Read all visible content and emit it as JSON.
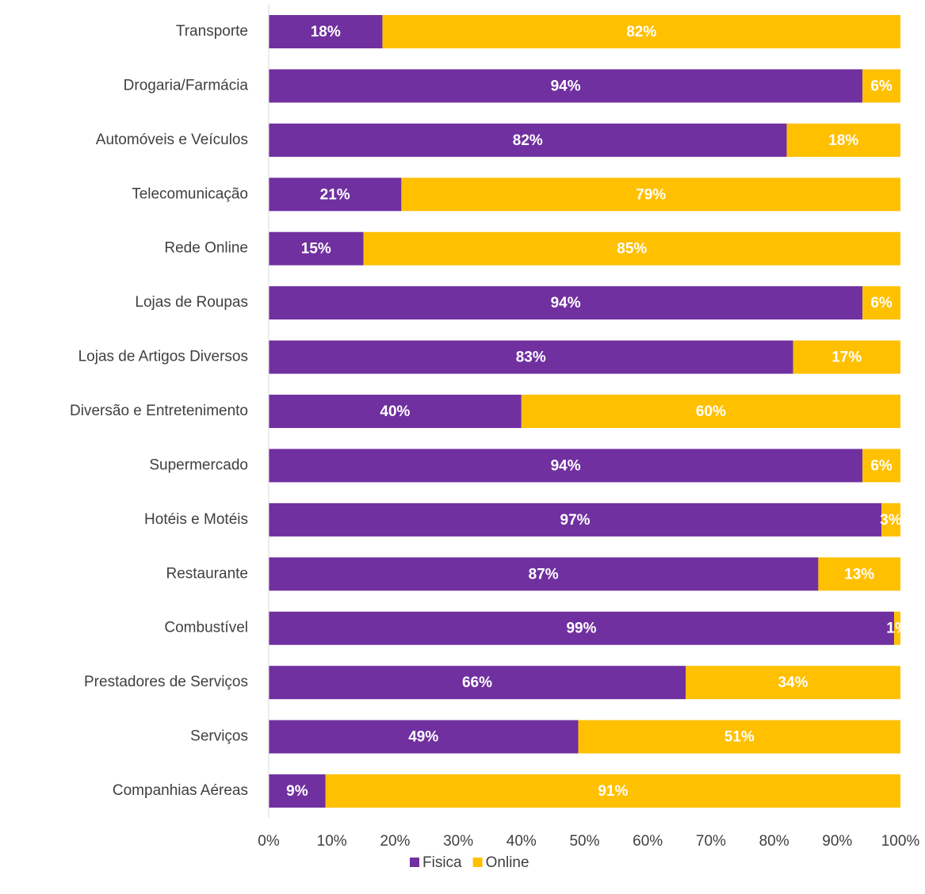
{
  "chart_data": {
    "type": "stacked_barh",
    "categories": [
      "Transporte",
      "Drogaria/Farmácia",
      "Automóveis e Veículos",
      "Telecomunicação",
      "Rede Online",
      "Lojas de Roupas",
      "Lojas de Artigos Diversos",
      "Diversão e Entretenimento",
      "Supermercado",
      "Hotéis e Motéis",
      "Restaurante",
      "Combustível",
      "Prestadores de Serviços",
      "Serviços",
      "Companhias Aéreas"
    ],
    "series": [
      {
        "name": "Fisica",
        "color": "#7030a0",
        "values": [
          18,
          94,
          82,
          21,
          15,
          94,
          83,
          40,
          94,
          97,
          87,
          99,
          66,
          49,
          9
        ],
        "value_labels": [
          "18%",
          "94%",
          "82%",
          "21%",
          "15%",
          "94%",
          "83%",
          "40%",
          "94%",
          "97%",
          "87%",
          "99%",
          "66%",
          "49%",
          "9%"
        ]
      },
      {
        "name": "Online",
        "color": "#ffc000",
        "values": [
          82,
          6,
          18,
          79,
          85,
          6,
          17,
          60,
          6,
          3,
          13,
          1,
          34,
          51,
          91
        ],
        "value_labels": [
          "82%",
          "6%",
          "18%",
          "79%",
          "85%",
          "6%",
          "17%",
          "60%",
          "6%",
          "3%",
          "13%",
          "1%",
          "34%",
          "51%",
          "91%"
        ]
      }
    ],
    "xlim": [
      0,
      100
    ],
    "xticks": [
      {
        "value": 0,
        "label": "0%"
      },
      {
        "value": 10,
        "label": "10%"
      },
      {
        "value": 20,
        "label": "20%"
      },
      {
        "value": 30,
        "label": "30%"
      },
      {
        "value": 40,
        "label": "40%"
      },
      {
        "value": 50,
        "label": "50%"
      },
      {
        "value": 60,
        "label": "60%"
      },
      {
        "value": 70,
        "label": "70%"
      },
      {
        "value": 80,
        "label": "80%"
      },
      {
        "value": 90,
        "label": "90%"
      },
      {
        "value": 100,
        "label": "100%"
      }
    ],
    "legend": "bottom"
  }
}
